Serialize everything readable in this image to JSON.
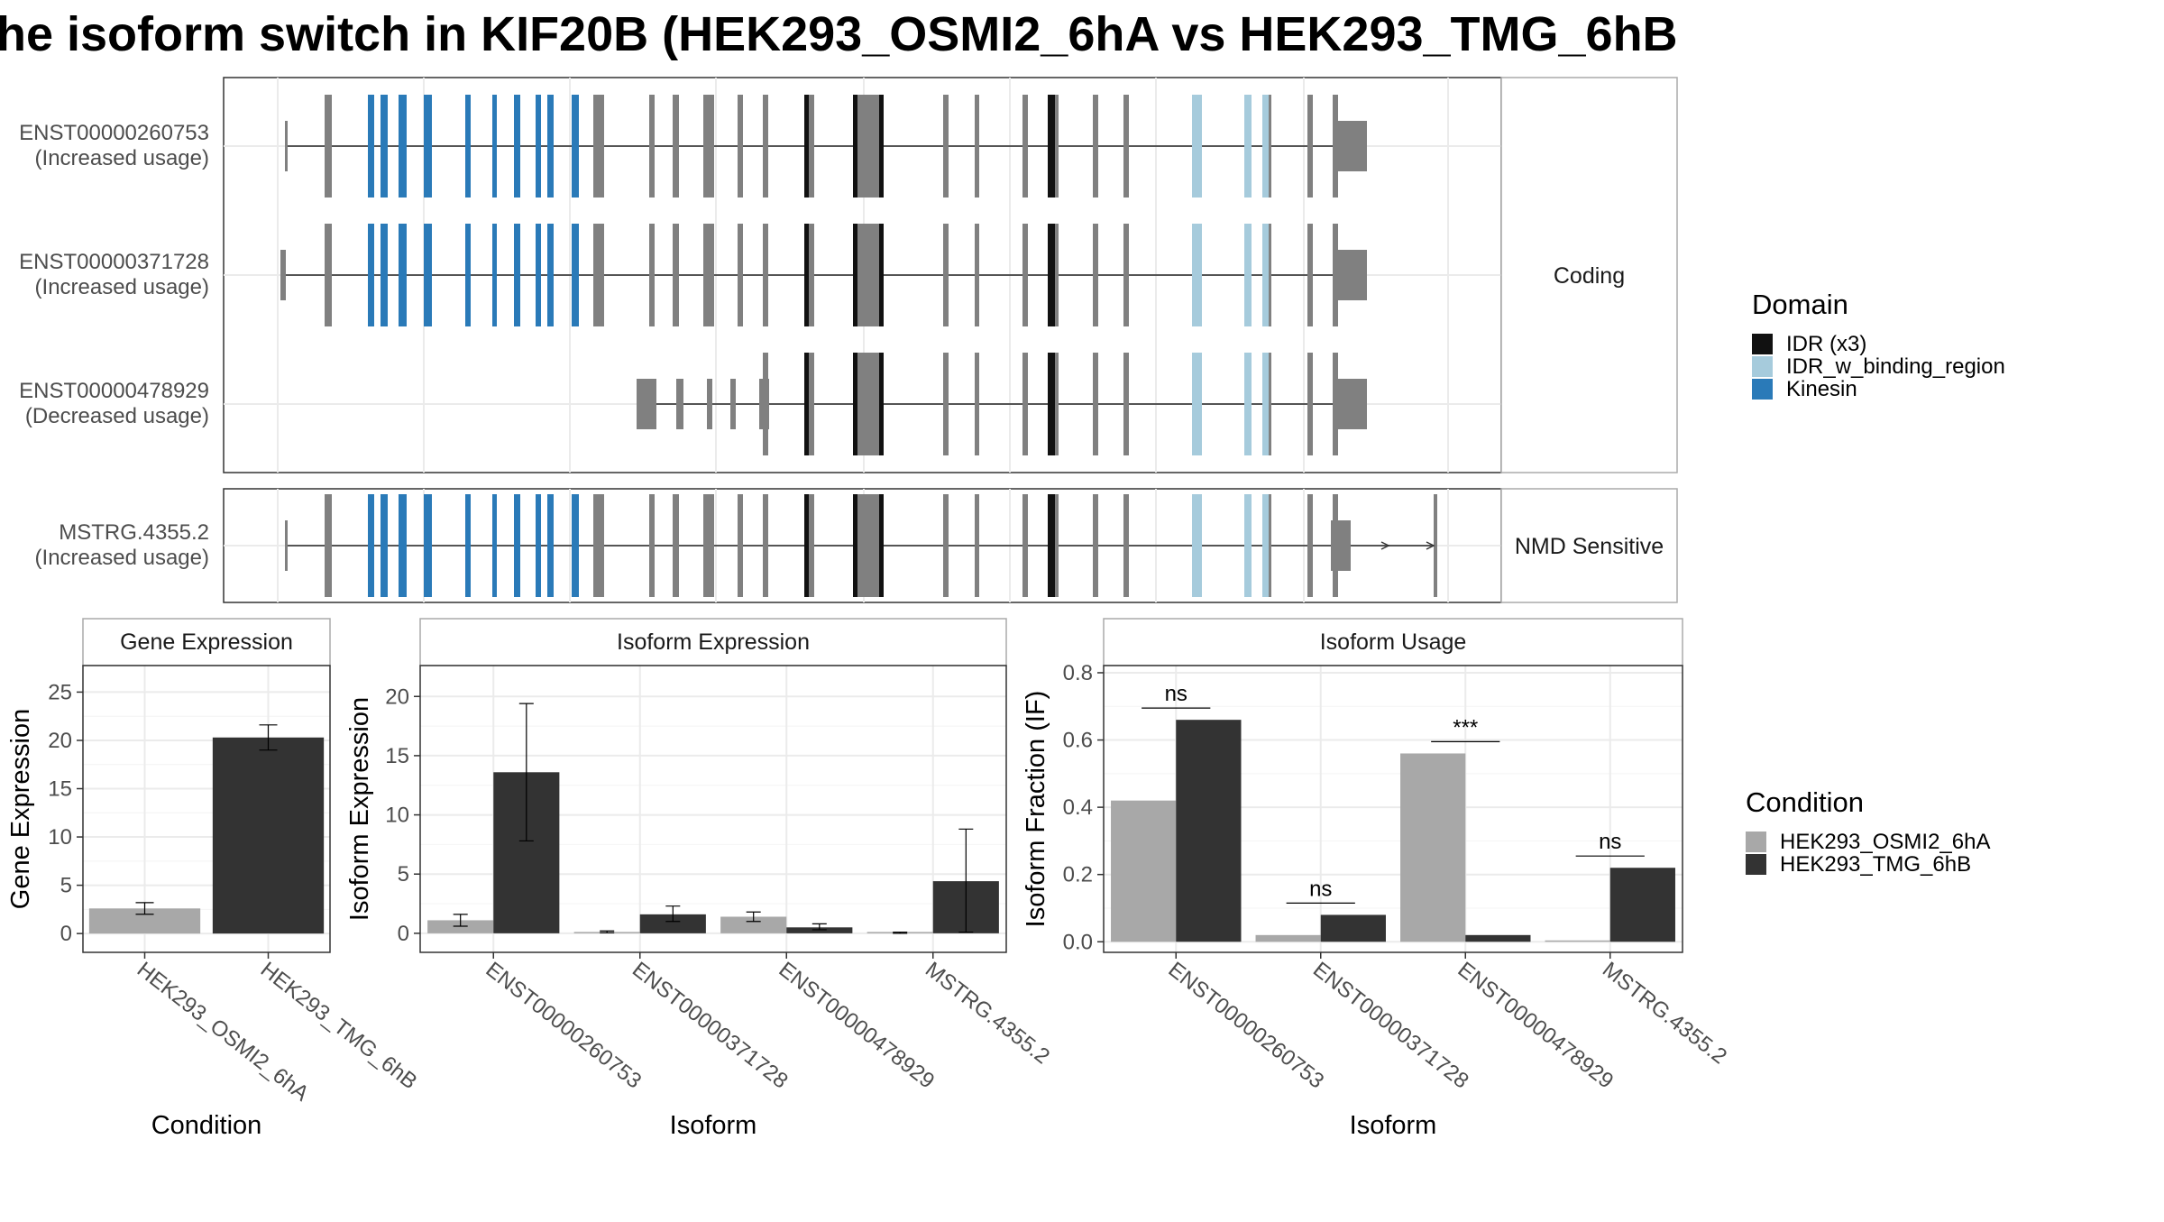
{
  "title": "he isoform switch in KIF20B (HEK293_OSMI2_6hA vs HEK293_TMG_6hB",
  "colors": {
    "exon": "#808080",
    "idr": "#111111",
    "idr_binding": "#a6cbdc",
    "kinesin": "#2a7ab8",
    "cond_a": "#a8a8a8",
    "cond_b": "#333333"
  },
  "transcript_panel": {
    "groups": [
      {
        "label": "Coding",
        "transcripts": [
          {
            "id": "ENST00000260753",
            "usage": "(Increased usage)"
          },
          {
            "id": "ENST00000371728",
            "usage": "(Increased usage)"
          },
          {
            "id": "ENST00000478929",
            "usage": "(Decreased usage)"
          }
        ]
      },
      {
        "label": "NMD Sensitive",
        "transcripts": [
          {
            "id": "MSTRG.4355.2",
            "usage": "(Increased usage)"
          }
        ]
      }
    ]
  },
  "domain_legend": {
    "title": "Domain",
    "items": [
      {
        "label": "IDR (x3)",
        "color": "#111111"
      },
      {
        "label": "IDR_w_binding_region",
        "color": "#a6cbdc"
      },
      {
        "label": "Kinesin",
        "color": "#2a7ab8"
      }
    ]
  },
  "condition_legend": {
    "title": "Condition",
    "items": [
      {
        "label": "HEK293_OSMI2_6hA",
        "color": "#a8a8a8"
      },
      {
        "label": "HEK293_TMG_6hB",
        "color": "#333333"
      }
    ]
  },
  "chart_data": [
    {
      "type": "bar",
      "title": "Gene Expression",
      "xlabel": "Condition",
      "ylabel": "Gene Expression",
      "ylim": [
        0,
        25
      ],
      "yticks": [
        0,
        5,
        10,
        15,
        20,
        25
      ],
      "categories": [
        "HEK293_OSMI2_6hA",
        "HEK293_TMG_6hB"
      ],
      "values": [
        2.6,
        20.3
      ],
      "errors": [
        [
          2.0,
          3.2
        ],
        [
          19.0,
          21.6
        ]
      ]
    },
    {
      "type": "bar",
      "title": "Isoform Expression",
      "xlabel": "Isoform",
      "ylabel": "Isoform Expression",
      "ylim": [
        0,
        20
      ],
      "yticks": [
        0,
        5,
        10,
        15,
        20
      ],
      "categories": [
        "ENST00000260753",
        "ENST00000371728",
        "ENST00000478929",
        "MSTRG.4355.2"
      ],
      "series": [
        {
          "name": "HEK293_OSMI2_6hA",
          "values": [
            1.1,
            0.1,
            1.4,
            0.05
          ],
          "errors": [
            [
              0.6,
              1.6
            ],
            [
              0.05,
              0.2
            ],
            [
              1.0,
              1.8
            ],
            [
              0.0,
              0.1
            ]
          ]
        },
        {
          "name": "HEK293_TMG_6hB",
          "values": [
            13.6,
            1.6,
            0.5,
            4.4
          ],
          "errors": [
            [
              7.8,
              19.4
            ],
            [
              1.0,
              2.3
            ],
            [
              0.3,
              0.8
            ],
            [
              0.1,
              8.8
            ]
          ]
        }
      ]
    },
    {
      "type": "bar",
      "title": "Isoform Usage",
      "xlabel": "Isoform",
      "ylabel": "Isoform Fraction (IF)",
      "ylim": [
        0,
        0.8
      ],
      "yticks": [
        0.0,
        0.2,
        0.4,
        0.6,
        0.8
      ],
      "categories": [
        "ENST00000260753",
        "ENST00000371728",
        "ENST00000478929",
        "MSTRG.4355.2"
      ],
      "series": [
        {
          "name": "HEK293_OSMI2_6hA",
          "values": [
            0.42,
            0.02,
            0.56,
            0.0
          ]
        },
        {
          "name": "HEK293_TMG_6hB",
          "values": [
            0.66,
            0.08,
            0.02,
            0.22
          ]
        }
      ],
      "annotations": [
        "ns",
        "ns",
        "***",
        "ns"
      ]
    }
  ]
}
